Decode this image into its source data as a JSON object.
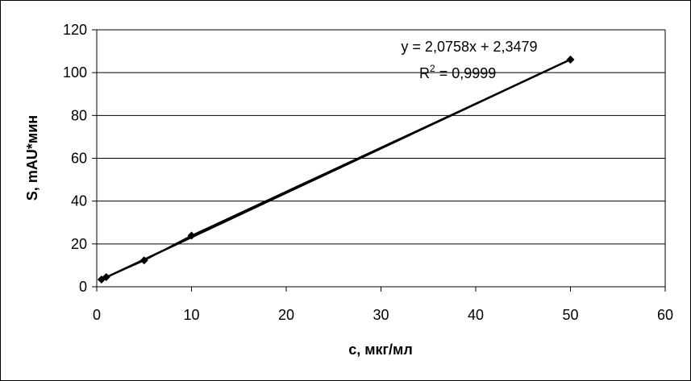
{
  "chart_data": {
    "type": "scatter",
    "xlabel": "c, мкг/мл",
    "ylabel": "S, mAU*мин",
    "xlim": [
      0,
      60
    ],
    "ylim": [
      0,
      120
    ],
    "x_ticks": [
      0,
      10,
      20,
      30,
      40,
      50,
      60
    ],
    "y_ticks": [
      0,
      20,
      40,
      60,
      80,
      100,
      120
    ],
    "grid": "horizontal",
    "legend": "none",
    "series": [
      {
        "x": [
          0.5,
          1,
          5,
          10,
          50
        ],
        "y": [
          3.4,
          4.5,
          12.3,
          23.9,
          106.1
        ],
        "marker": "diamond",
        "color": "#000000"
      }
    ],
    "trendline": {
      "slope": 2.0758,
      "intercept": 2.3479,
      "x_range": [
        0.5,
        50
      ],
      "equation": "y = 2,0758x + 2,3479",
      "r2_prefix": "R",
      "r2_exp": "2",
      "r2_suffix": " = 0,9999"
    }
  }
}
